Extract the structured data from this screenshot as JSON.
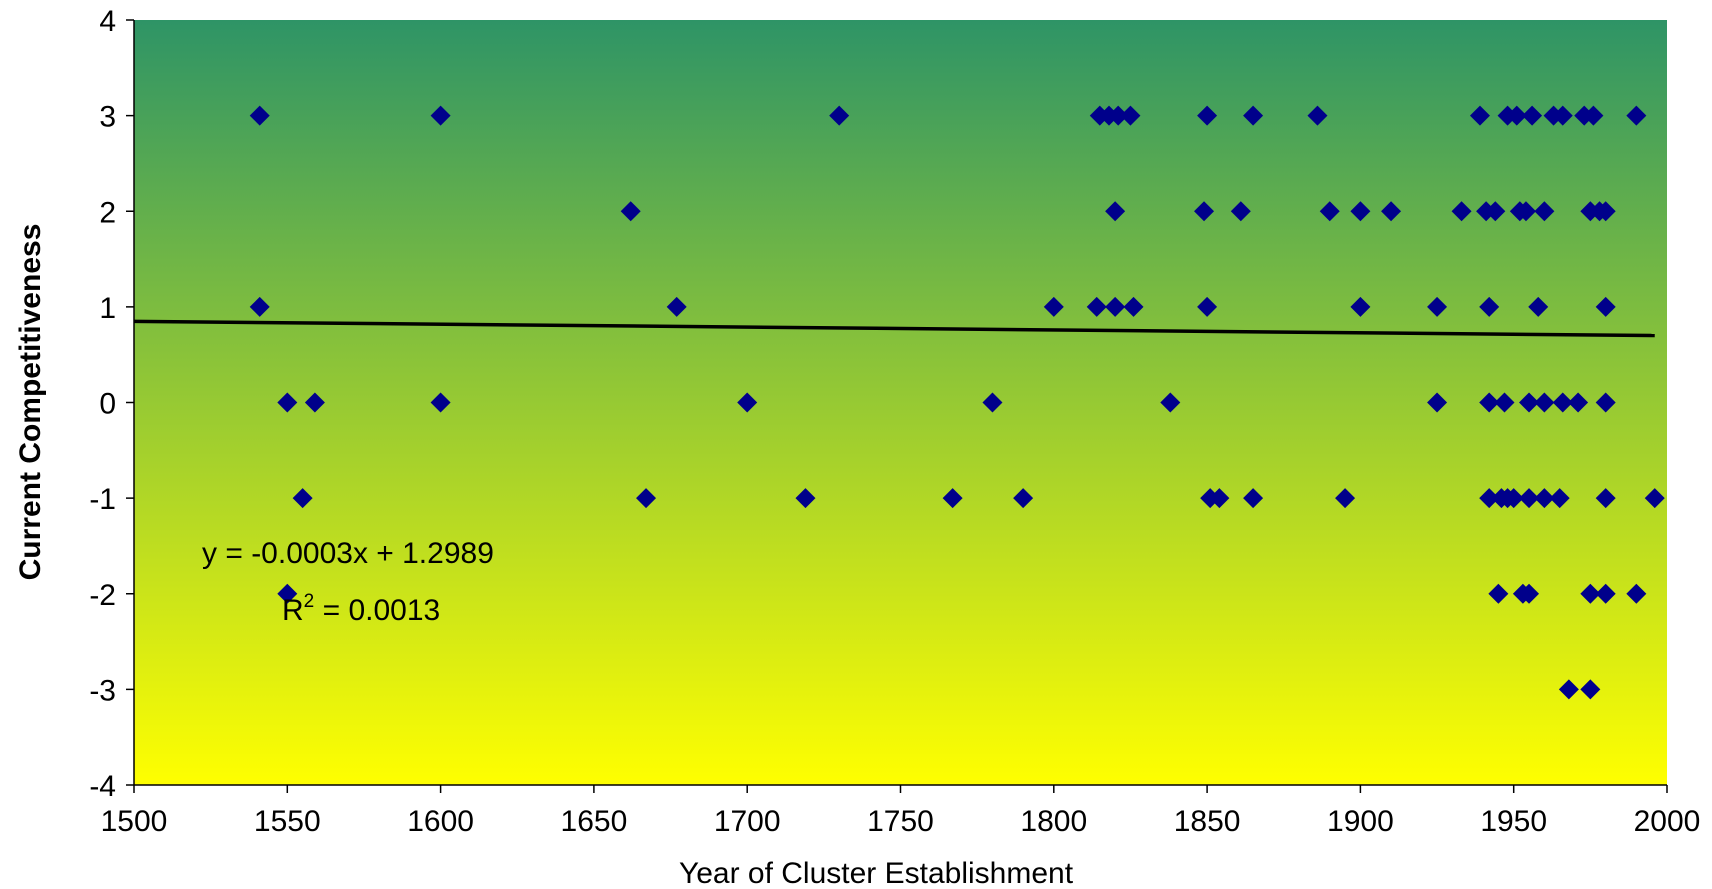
{
  "chart_data": {
    "type": "scatter",
    "title": "",
    "xlabel": "Year of Cluster Establishment",
    "ylabel": "Current Competitiveness",
    "xlim": [
      1500,
      2000
    ],
    "ylim": [
      4,
      -4
    ],
    "y_axis_inverted": true,
    "x_ticks": [
      "1500",
      "1550",
      "1600",
      "1650",
      "1700",
      "1750",
      "1800",
      "1850",
      "1900",
      "1950",
      "2000"
    ],
    "y_ticks": [
      "-4",
      "-3",
      "-2",
      "-1",
      "0",
      "1",
      "2",
      "3",
      "4"
    ],
    "grid": false,
    "background": "vertical gradient, green at top to yellow at bottom",
    "colors": {
      "gradient_top": "#2e9466",
      "gradient_bottom": "#ffff00",
      "marker": "#00008b",
      "trendline": "#000000"
    },
    "marker_shape": "diamond",
    "points": [
      [
        1541,
        1
      ],
      [
        1541,
        3
      ],
      [
        1550,
        -2
      ],
      [
        1550,
        0
      ],
      [
        1555,
        -1
      ],
      [
        1559,
        0
      ],
      [
        1600,
        0
      ],
      [
        1600,
        3
      ],
      [
        1662,
        2
      ],
      [
        1667,
        -1
      ],
      [
        1677,
        1
      ],
      [
        1700,
        0
      ],
      [
        1719,
        -1
      ],
      [
        1730,
        3
      ],
      [
        1767,
        -1
      ],
      [
        1780,
        0
      ],
      [
        1790,
        -1
      ],
      [
        1800,
        1
      ],
      [
        1814,
        1
      ],
      [
        1815,
        3
      ],
      [
        1818,
        3
      ],
      [
        1820,
        1
      ],
      [
        1820,
        2
      ],
      [
        1821,
        3
      ],
      [
        1826,
        1
      ],
      [
        1825,
        3
      ],
      [
        1838,
        0
      ],
      [
        1849,
        2
      ],
      [
        1850,
        1
      ],
      [
        1850,
        3
      ],
      [
        1851,
        -1
      ],
      [
        1854,
        -1
      ],
      [
        1861,
        2
      ],
      [
        1865,
        -1
      ],
      [
        1865,
        3
      ],
      [
        1886,
        3
      ],
      [
        1890,
        2
      ],
      [
        1895,
        -1
      ],
      [
        1900,
        1
      ],
      [
        1900,
        2
      ],
      [
        1910,
        2
      ],
      [
        1925,
        0
      ],
      [
        1925,
        1
      ],
      [
        1933,
        2
      ],
      [
        1939,
        3
      ],
      [
        1941,
        2
      ],
      [
        1942,
        -1
      ],
      [
        1942,
        0
      ],
      [
        1942,
        1
      ],
      [
        1944,
        2
      ],
      [
        1945,
        -2
      ],
      [
        1946,
        -1
      ],
      [
        1947,
        0
      ],
      [
        1948,
        -1
      ],
      [
        1948,
        3
      ],
      [
        1950,
        -1
      ],
      [
        1951,
        3
      ],
      [
        1952,
        2
      ],
      [
        1953,
        -2
      ],
      [
        1954,
        2
      ],
      [
        1955,
        -2
      ],
      [
        1955,
        -1
      ],
      [
        1955,
        0
      ],
      [
        1956,
        3
      ],
      [
        1958,
        1
      ],
      [
        1960,
        -1
      ],
      [
        1960,
        0
      ],
      [
        1960,
        2
      ],
      [
        1963,
        3
      ],
      [
        1965,
        -1
      ],
      [
        1966,
        0
      ],
      [
        1966,
        3
      ],
      [
        1968,
        -3
      ],
      [
        1971,
        0
      ],
      [
        1973,
        3
      ],
      [
        1975,
        -3
      ],
      [
        1975,
        -2
      ],
      [
        1975,
        2
      ],
      [
        1976,
        3
      ],
      [
        1978,
        2
      ],
      [
        1980,
        -2
      ],
      [
        1980,
        -1
      ],
      [
        1980,
        0
      ],
      [
        1980,
        1
      ],
      [
        1980,
        2
      ],
      [
        1990,
        -2
      ],
      [
        1990,
        3
      ],
      [
        1996,
        -1
      ]
    ],
    "trendline": {
      "slope": -0.0003,
      "intercept": 1.2989,
      "x_range": [
        1500,
        1996
      ]
    },
    "annotations": {
      "equation": "y = -0.0003x + 1.2989",
      "r2_label": "R",
      "r2_exp": "2",
      "r2_value": " = 0.0013"
    }
  }
}
